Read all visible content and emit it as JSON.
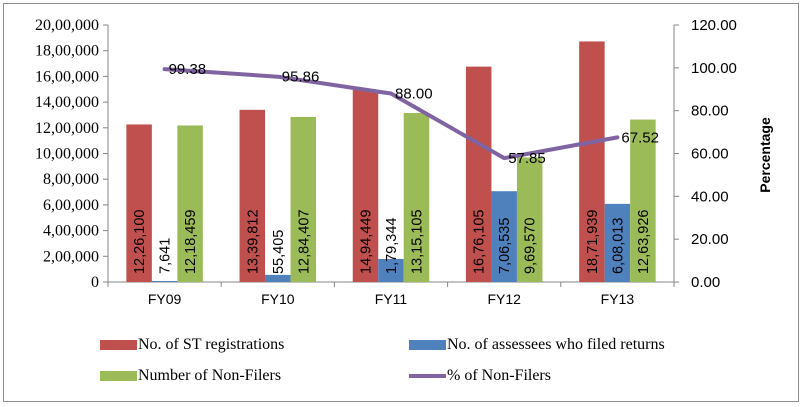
{
  "chart_data": {
    "type": "bar",
    "title": "",
    "categories": [
      "FY09",
      "FY10",
      "FY11",
      "FY12",
      "FY13"
    ],
    "series": [
      {
        "name": "No. of ST registrations",
        "type": "bar",
        "axis": "left",
        "color": "#c0504d",
        "values": [
          1226100,
          1339812,
          1494449,
          1676105,
          1871939
        ],
        "labels": [
          "12,26,100",
          "13,39,812",
          "14,94,449",
          "16,76,105",
          "18,71,939"
        ]
      },
      {
        "name": "No. of assessees who filed returns",
        "type": "bar",
        "axis": "left",
        "color": "#4f81bd",
        "values": [
          7641,
          55405,
          179344,
          706535,
          608013
        ],
        "labels": [
          "7,641",
          "55,405",
          "1,79,344",
          "7,06,535",
          "6,08,013"
        ]
      },
      {
        "name": "Number of Non-Filers",
        "type": "bar",
        "axis": "left",
        "color": "#9bbb59",
        "values": [
          1218459,
          1284407,
          1315105,
          969570,
          1263926
        ],
        "labels": [
          "12,18,459",
          "12,84,407",
          "13,15,105",
          "9,69,570",
          "12,63,926"
        ]
      },
      {
        "name": "% of Non-Filers",
        "type": "line",
        "axis": "right",
        "color": "#8064a2",
        "values": [
          99.38,
          95.86,
          88.0,
          57.85,
          67.52
        ],
        "labels": [
          "99.38",
          "95.86",
          "88.00",
          "57.85",
          "67.52"
        ]
      }
    ],
    "left_axis": {
      "label": "",
      "ylim": [
        0,
        2000000
      ],
      "ticks": [
        "0",
        "2,00,000",
        "4,00,000",
        "6,00,000",
        "8,00,000",
        "10,00,000",
        "12,00,000",
        "14,00,000",
        "16,00,000",
        "18,00,000",
        "20,00,000"
      ]
    },
    "right_axis": {
      "label": "Percentage",
      "ylim": [
        0,
        120
      ],
      "ticks": [
        "0.00",
        "20.00",
        "40.00",
        "60.00",
        "80.00",
        "100.00",
        "120.00"
      ]
    },
    "grid": false,
    "legend_position": "bottom"
  }
}
